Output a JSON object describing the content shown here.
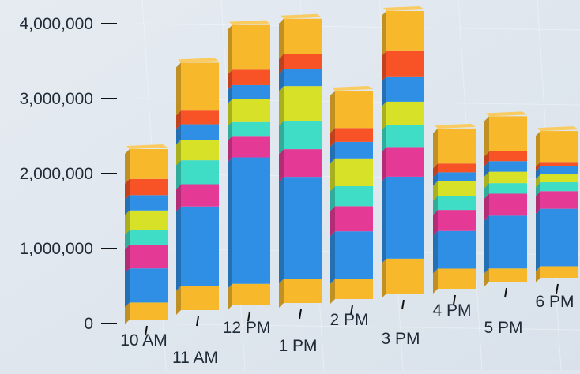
{
  "chart_data": {
    "type": "bar",
    "stacked": true,
    "perspective": "3d",
    "grid": true,
    "legend": "none",
    "ylim": [
      0,
      4000000
    ],
    "yticks": [
      {
        "value": 0,
        "label": "0"
      },
      {
        "value": 1000000,
        "label": "1,000,000"
      },
      {
        "value": 2000000,
        "label": "2,000,000"
      },
      {
        "value": 3000000,
        "label": "3,000,000"
      },
      {
        "value": 4000000,
        "label": "4,000,000"
      }
    ],
    "categories": [
      "10 AM",
      "11 AM",
      "12 PM",
      "1 PM",
      "2 PM",
      "3 PM",
      "4 PM",
      "5 PM",
      "6 PM"
    ],
    "series": [
      {
        "color": "#f7b92b",
        "values": [
          200000,
          280000,
          250000,
          280000,
          230000,
          400000,
          230000,
          150000,
          130000
        ]
      },
      {
        "color": "#2e8fe4",
        "values": [
          400000,
          930000,
          1470000,
          1180000,
          550000,
          940000,
          430000,
          600000,
          650000
        ]
      },
      {
        "color": "#e43a96",
        "values": [
          280000,
          260000,
          250000,
          320000,
          290000,
          340000,
          240000,
          250000,
          200000
        ]
      },
      {
        "color": "#3fdcc6",
        "values": [
          170000,
          280000,
          170000,
          330000,
          230000,
          250000,
          160000,
          120000,
          100000
        ]
      },
      {
        "color": "#d7e127",
        "values": [
          230000,
          240000,
          260000,
          400000,
          320000,
          270000,
          170000,
          130000,
          90000
        ]
      },
      {
        "color": "#2e8fe4",
        "values": [
          180000,
          180000,
          160000,
          200000,
          190000,
          290000,
          100000,
          120000,
          90000
        ]
      },
      {
        "color": "#f75327",
        "values": [
          190000,
          160000,
          180000,
          170000,
          160000,
          290000,
          100000,
          110000,
          50000
        ]
      },
      {
        "color": "#f7b92b",
        "values": [
          350000,
          560000,
          520000,
          410000,
          430000,
          460000,
          400000,
          400000,
          350000
        ]
      }
    ]
  }
}
